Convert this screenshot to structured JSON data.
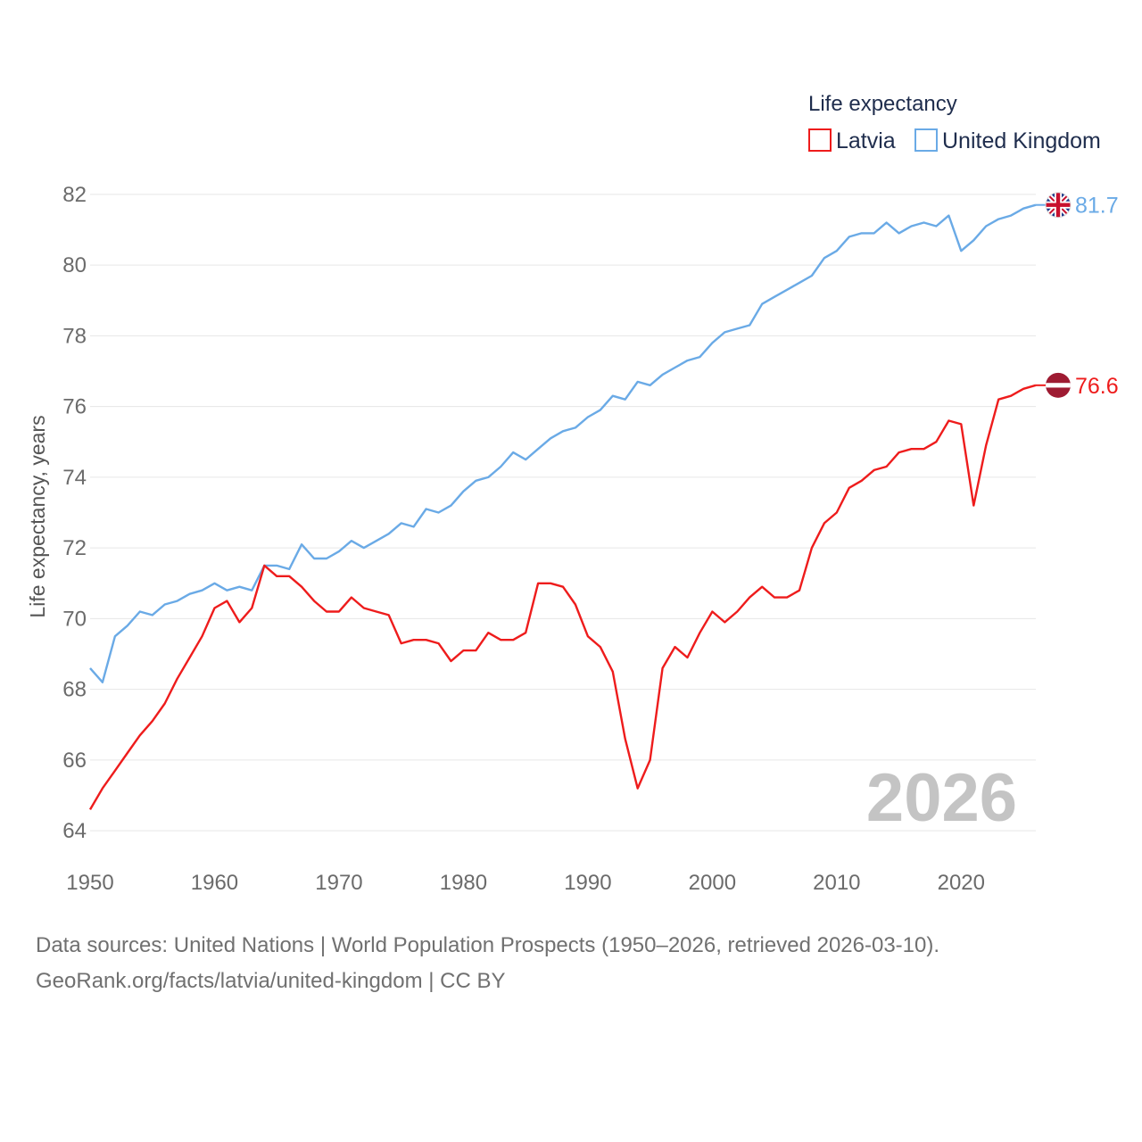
{
  "legend": {
    "title": "Life expectancy",
    "items": [
      {
        "label": "Latvia",
        "color": "#ee1c1c"
      },
      {
        "label": "United Kingdom",
        "color": "#6aaae6"
      }
    ]
  },
  "year_label": "2026",
  "footer": {
    "line1": "Data sources: United Nations | World Population Prospects (1950–2026, retrieved 2026-03-10).",
    "line2": "GeoRank.org/facts/latvia/united-kingdom | CC BY"
  },
  "end_labels": {
    "united_kingdom": {
      "text": "81.7",
      "icon": "uk-flag-icon"
    },
    "latvia": {
      "text": "76.6",
      "icon": "latvia-flag-icon"
    }
  },
  "chart_data": {
    "type": "line",
    "title": "Life expectancy",
    "xlabel": "",
    "ylabel": "Life expectancy, years",
    "xlim": [
      1950,
      2026
    ],
    "ylim": [
      63.5,
      82.5
    ],
    "x_ticks": [
      "1950",
      "1960",
      "1970",
      "1980",
      "1990",
      "2000",
      "2010",
      "2020"
    ],
    "y_ticks": [
      "64",
      "66",
      "68",
      "70",
      "72",
      "74",
      "76",
      "78",
      "80",
      "82"
    ],
    "grid": true,
    "legend_position": "top-right",
    "x": [
      1950,
      1951,
      1952,
      1953,
      1954,
      1955,
      1956,
      1957,
      1958,
      1959,
      1960,
      1961,
      1962,
      1963,
      1964,
      1965,
      1966,
      1967,
      1968,
      1969,
      1970,
      1971,
      1972,
      1973,
      1974,
      1975,
      1976,
      1977,
      1978,
      1979,
      1980,
      1981,
      1982,
      1983,
      1984,
      1985,
      1986,
      1987,
      1988,
      1989,
      1990,
      1991,
      1992,
      1993,
      1994,
      1995,
      1996,
      1997,
      1998,
      1999,
      2000,
      2001,
      2002,
      2003,
      2004,
      2005,
      2006,
      2007,
      2008,
      2009,
      2010,
      2011,
      2012,
      2013,
      2014,
      2015,
      2016,
      2017,
      2018,
      2019,
      2020,
      2021,
      2022,
      2023,
      2024,
      2025,
      2026
    ],
    "series": [
      {
        "name": "United Kingdom",
        "color": "#6aaae6",
        "values": [
          68.6,
          68.2,
          69.5,
          69.8,
          70.2,
          70.1,
          70.4,
          70.5,
          70.7,
          70.8,
          71.0,
          70.8,
          70.9,
          70.8,
          71.5,
          71.5,
          71.4,
          72.1,
          71.7,
          71.7,
          71.9,
          72.2,
          72.0,
          72.2,
          72.4,
          72.7,
          72.6,
          73.1,
          73.0,
          73.2,
          73.6,
          73.9,
          74.0,
          74.3,
          74.7,
          74.5,
          74.8,
          75.1,
          75.3,
          75.4,
          75.7,
          75.9,
          76.3,
          76.2,
          76.7,
          76.6,
          76.9,
          77.1,
          77.3,
          77.4,
          77.8,
          78.1,
          78.2,
          78.3,
          78.9,
          79.1,
          79.3,
          79.5,
          79.7,
          80.2,
          80.4,
          80.8,
          80.9,
          80.9,
          81.2,
          80.9,
          81.1,
          81.2,
          81.1,
          81.4,
          80.4,
          80.7,
          81.1,
          81.3,
          81.4,
          81.6,
          81.7
        ]
      },
      {
        "name": "Latvia",
        "color": "#ee1c1c",
        "values": [
          64.6,
          65.2,
          65.7,
          66.2,
          66.7,
          67.1,
          67.6,
          68.3,
          68.9,
          69.5,
          70.3,
          70.5,
          69.9,
          70.3,
          71.5,
          71.2,
          71.2,
          70.9,
          70.5,
          70.2,
          70.2,
          70.6,
          70.3,
          70.2,
          70.1,
          69.3,
          69.4,
          69.4,
          69.3,
          68.8,
          69.1,
          69.1,
          69.6,
          69.4,
          69.4,
          69.6,
          71.0,
          71.0,
          70.9,
          70.4,
          69.5,
          69.2,
          68.5,
          66.6,
          65.2,
          66.0,
          68.6,
          69.2,
          68.9,
          69.6,
          70.2,
          69.9,
          70.2,
          70.6,
          70.9,
          70.6,
          70.6,
          70.8,
          72.0,
          72.7,
          73.0,
          73.7,
          73.9,
          74.2,
          74.3,
          74.7,
          74.8,
          74.8,
          75.0,
          75.6,
          75.5,
          73.2,
          74.9,
          76.2,
          76.3,
          76.5,
          76.6
        ]
      }
    ]
  }
}
